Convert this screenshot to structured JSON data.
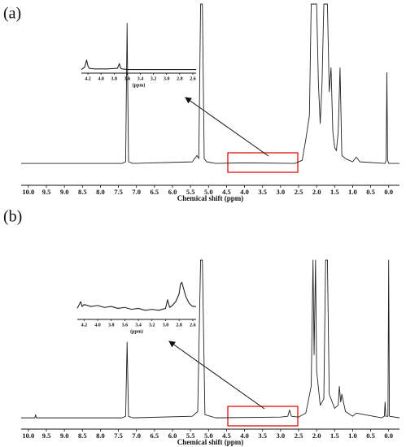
{
  "chart_data": [
    {
      "type": "line",
      "panel_label": "(a)",
      "xlabel": "Chemical shift (ppm)",
      "color": "#222222",
      "xlim": [
        10.2,
        -0.3
      ],
      "ylim": [
        -2,
        100
      ],
      "xticks": [
        {
          "value": 10,
          "label": "10.0"
        },
        9.5,
        {
          "value": 9,
          "label": "9.0"
        },
        8.5,
        {
          "value": 8,
          "label": "8.0"
        },
        7.5,
        {
          "value": 7,
          "label": "7.0"
        },
        6.5,
        {
          "value": 6,
          "label": "6.0"
        },
        5.5,
        {
          "value": 5,
          "label": "5.0"
        },
        4.5,
        {
          "value": 4,
          "label": "4.0"
        },
        3.5,
        {
          "value": 3,
          "label": "3.0"
        },
        2.5,
        {
          "value": 2,
          "label": "2.0"
        },
        1.5,
        {
          "value": 1,
          "label": "1.0"
        },
        0.5,
        {
          "value": 0,
          "label": "0.0"
        }
      ],
      "x": [
        10.2,
        7.4,
        7.3,
        7.26,
        7.22,
        7.1,
        5.45,
        5.32,
        5.27,
        5.22,
        5.17,
        5.12,
        5.05,
        4.8,
        4.2,
        3.7,
        2.6,
        2.4,
        2.3,
        2.2,
        2.15,
        2.1,
        2.05,
        2.0,
        1.95,
        1.9,
        1.85,
        1.8,
        1.75,
        1.7,
        1.65,
        1.6,
        1.55,
        1.5,
        1.45,
        1.4,
        1.35,
        1.3,
        1.2,
        1.0,
        0.9,
        0.8,
        0.1,
        0.07,
        0.05,
        0.03,
        0,
        -0.3
      ],
      "values": [
        0,
        0,
        1,
        88,
        1,
        0,
        1,
        5,
        3,
        100,
        100,
        3,
        1,
        0,
        0.3,
        0.3,
        0,
        2,
        15,
        30,
        100,
        100,
        100,
        100,
        50,
        25,
        50,
        100,
        100,
        100,
        45,
        60,
        20,
        10,
        8,
        20,
        60,
        5,
        3,
        1,
        4,
        1,
        0,
        2,
        57,
        2,
        0,
        0
      ],
      "inset": {
        "xlabel": "(ppm)",
        "xlim": [
          4.3,
          2.55
        ],
        "ylim": [
          -1,
          12
        ],
        "xticks": [
          4.2,
          {
            "value": 4,
            "label": "4.0"
          },
          3.8,
          3.6,
          3.4,
          3.2,
          {
            "value": 3,
            "label": "3.0"
          },
          2.8,
          2.6
        ],
        "x": [
          4.3,
          4.25,
          4.22,
          4.2,
          4.18,
          4.1,
          3.9,
          3.75,
          3.72,
          3.7,
          3.68,
          3.6,
          3.2,
          2.8,
          2.55
        ],
        "values": [
          0,
          2,
          8,
          3,
          1,
          0.5,
          0.5,
          1,
          5,
          1,
          0.5,
          0,
          0,
          0,
          0
        ]
      }
    },
    {
      "type": "line",
      "panel_label": "(b)",
      "xlabel": "Chemical shift (ppm)",
      "color": "#222222",
      "xlim": [
        10.2,
        -0.3
      ],
      "ylim": [
        -2,
        100
      ],
      "xticks": [
        {
          "value": 10,
          "label": "10.0"
        },
        9.5,
        {
          "value": 9,
          "label": "9.0"
        },
        8.5,
        {
          "value": 8,
          "label": "8.0"
        },
        7.5,
        {
          "value": 7,
          "label": "7.0"
        },
        6.5,
        {
          "value": 6,
          "label": "6.0"
        },
        5.5,
        {
          "value": 5,
          "label": "5.0"
        },
        4.5,
        {
          "value": 4,
          "label": "4.0"
        },
        3.5,
        {
          "value": 3,
          "label": "3.0"
        },
        2.5,
        {
          "value": 2,
          "label": "2.0"
        },
        1.5,
        {
          "value": 1,
          "label": "1.0"
        },
        0.5,
        {
          "value": 0,
          "label": "0.0"
        }
      ],
      "x": [
        10.2,
        9.82,
        9.8,
        9.78,
        7.4,
        7.3,
        7.26,
        7.22,
        7.1,
        5.45,
        5.3,
        5.22,
        5.17,
        5.1,
        4.8,
        3.0,
        2.8,
        2.75,
        2.7,
        2.5,
        2.3,
        2.15,
        2.1,
        2.07,
        2.03,
        2.0,
        1.9,
        1.8,
        1.75,
        1.7,
        1.65,
        1.5,
        1.4,
        1.37,
        1.33,
        1.3,
        1.2,
        1.0,
        0.9,
        0.2,
        0.12,
        0.1,
        0.08,
        0.02,
        0,
        -0.02,
        -0.3
      ],
      "values": [
        0,
        0,
        2,
        0,
        0,
        1,
        48,
        1,
        0,
        1,
        4,
        100,
        100,
        2,
        0,
        0.5,
        1,
        5,
        1,
        0.5,
        3,
        20,
        100,
        40,
        100,
        30,
        8,
        12,
        100,
        100,
        15,
        6,
        8,
        20,
        10,
        15,
        4,
        1,
        3,
        0,
        1,
        10,
        1,
        1,
        100,
        1,
        0
      ],
      "inset": {
        "xlabel": "(ppm)",
        "xlim": [
          4.3,
          2.55
        ],
        "ylim": [
          0,
          32
        ],
        "xticks": [
          4.2,
          {
            "value": 4,
            "label": "4.0"
          },
          3.8,
          3.6,
          3.4,
          3.2,
          {
            "value": 3,
            "label": "3.0"
          },
          2.8,
          2.6
        ],
        "x": [
          4.3,
          4.25,
          4.23,
          4.2,
          4.1,
          4.0,
          3.9,
          3.8,
          3.7,
          3.6,
          3.5,
          3.4,
          3.3,
          3.2,
          3.1,
          3.0,
          2.97,
          2.94,
          2.9,
          2.85,
          2.8,
          2.78,
          2.76,
          2.72,
          2.7,
          2.65,
          2.6,
          2.55
        ],
        "values": [
          3,
          10,
          5,
          7,
          5,
          6,
          4,
          5,
          3,
          4,
          2,
          3,
          1,
          2,
          1,
          3,
          12,
          4,
          6,
          10,
          18,
          28,
          30,
          20,
          15,
          8,
          5,
          5
        ]
      }
    }
  ]
}
